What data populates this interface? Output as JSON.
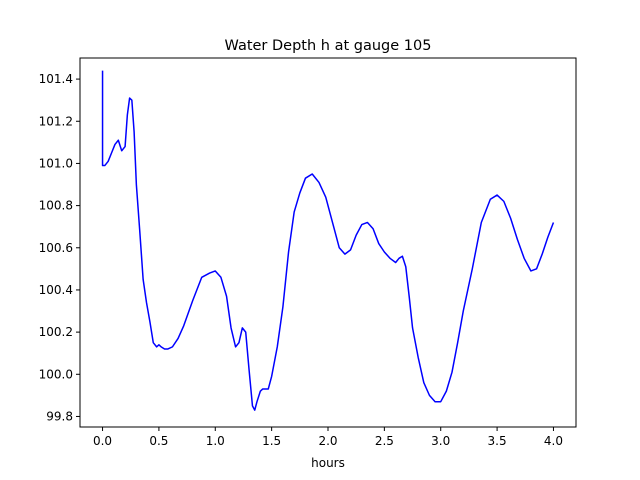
{
  "chart_data": {
    "type": "line",
    "title": "Water Depth h at gauge 105",
    "xlabel": "hours",
    "ylabel": "",
    "xlim": [
      -0.2,
      4.2
    ],
    "ylim": [
      99.75,
      101.5
    ],
    "xticks": [
      0.0,
      0.5,
      1.0,
      1.5,
      2.0,
      2.5,
      3.0,
      3.5,
      4.0
    ],
    "xtick_labels": [
      "0.0",
      "0.5",
      "1.0",
      "1.5",
      "2.0",
      "2.5",
      "3.0",
      "3.5",
      "4.0"
    ],
    "yticks": [
      99.8,
      100.0,
      100.2,
      100.4,
      100.6,
      100.8,
      101.0,
      101.2,
      101.4
    ],
    "ytick_labels": [
      "99.8",
      "100.0",
      "100.2",
      "100.4",
      "100.6",
      "100.8",
      "101.0",
      "101.2",
      "101.4"
    ],
    "grid": false,
    "series": [
      {
        "color": "#0000ff",
        "x": [
          0.0,
          0.0,
          0.0,
          0.02,
          0.05,
          0.08,
          0.11,
          0.14,
          0.17,
          0.2,
          0.22,
          0.24,
          0.26,
          0.28,
          0.3,
          0.33,
          0.36,
          0.39,
          0.42,
          0.45,
          0.48,
          0.5,
          0.52,
          0.55,
          0.58,
          0.62,
          0.67,
          0.72,
          0.8,
          0.88,
          0.95,
          1.0,
          1.05,
          1.1,
          1.14,
          1.18,
          1.21,
          1.24,
          1.27,
          1.3,
          1.33,
          1.35,
          1.37,
          1.4,
          1.42,
          1.44,
          1.47,
          1.5,
          1.55,
          1.6,
          1.65,
          1.7,
          1.75,
          1.8,
          1.86,
          1.92,
          1.98,
          2.05,
          2.1,
          2.15,
          2.2,
          2.25,
          2.3,
          2.35,
          2.4,
          2.45,
          2.5,
          2.55,
          2.6,
          2.63,
          2.66,
          2.69,
          2.72,
          2.75,
          2.8,
          2.85,
          2.9,
          2.95,
          3.0,
          3.05,
          3.1,
          3.15,
          3.2,
          3.28,
          3.36,
          3.44,
          3.5,
          3.56,
          3.62,
          3.68,
          3.74,
          3.8,
          3.85,
          3.9,
          3.95,
          4.0
        ],
        "y": [
          101.44,
          101.2,
          100.99,
          100.99,
          101.01,
          101.05,
          101.09,
          101.11,
          101.06,
          101.08,
          101.23,
          101.31,
          101.3,
          101.15,
          100.9,
          100.68,
          100.45,
          100.34,
          100.25,
          100.15,
          100.13,
          100.14,
          100.13,
          100.12,
          100.12,
          100.13,
          100.17,
          100.23,
          100.35,
          100.46,
          100.48,
          100.49,
          100.46,
          100.37,
          100.22,
          100.13,
          100.15,
          100.22,
          100.2,
          100.02,
          99.85,
          99.83,
          99.87,
          99.92,
          99.93,
          99.93,
          99.93,
          99.99,
          100.13,
          100.32,
          100.58,
          100.77,
          100.86,
          100.93,
          100.95,
          100.91,
          100.84,
          100.7,
          100.6,
          100.57,
          100.59,
          100.66,
          100.71,
          100.72,
          100.69,
          100.62,
          100.58,
          100.55,
          100.53,
          100.55,
          100.56,
          100.51,
          100.37,
          100.22,
          100.08,
          99.96,
          99.9,
          99.87,
          99.87,
          99.92,
          100.01,
          100.15,
          100.3,
          100.5,
          100.72,
          100.83,
          100.85,
          100.82,
          100.74,
          100.64,
          100.55,
          100.49,
          100.5,
          100.57,
          100.65,
          100.72
        ]
      }
    ]
  }
}
